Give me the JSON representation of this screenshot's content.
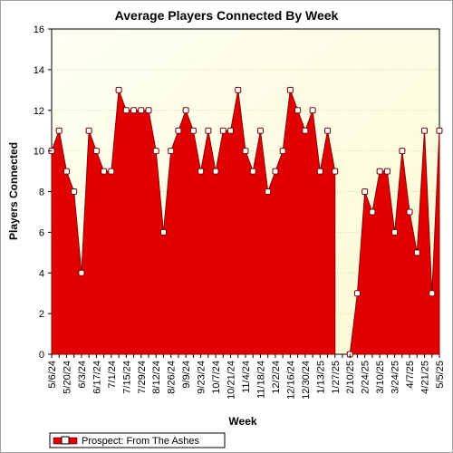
{
  "chart_data": {
    "type": "area",
    "title": "Average Players Connected By Week",
    "xlabel": "Week",
    "ylabel": "Players Connected",
    "ylim": [
      0,
      16
    ],
    "yticks": [
      0,
      2,
      4,
      6,
      8,
      10,
      12,
      14,
      16
    ],
    "x_tick_labels": [
      "5/6/24",
      "5/20/24",
      "6/3/24",
      "6/17/24",
      "7/1/24",
      "7/15/24",
      "7/29/24",
      "8/12/24",
      "8/26/24",
      "9/9/24",
      "9/23/24",
      "10/7/24",
      "10/21/24",
      "11/4/24",
      "11/18/24",
      "12/2/24",
      "12/16/24",
      "12/30/24",
      "1/13/25",
      "1/27/25",
      "2/10/25",
      "2/24/25",
      "3/10/25",
      "3/24/25",
      "4/7/25",
      "4/21/25",
      "5/5/25"
    ],
    "legend": {
      "placement": "bottom-left"
    },
    "series": [
      {
        "name": "Prospect: From The Ashes",
        "color": "#e00000",
        "values": [
          10,
          11,
          9,
          8,
          4,
          11,
          10,
          9,
          9,
          13,
          12,
          12,
          12,
          12,
          10,
          6,
          10,
          11,
          12,
          11,
          9,
          11,
          9,
          11,
          11,
          13,
          10,
          9,
          11,
          8,
          9,
          10,
          13,
          12,
          11,
          12,
          9,
          11,
          9,
          null,
          0,
          3,
          8,
          7,
          9,
          9,
          6,
          10,
          7,
          5,
          11,
          3,
          11
        ]
      }
    ]
  }
}
